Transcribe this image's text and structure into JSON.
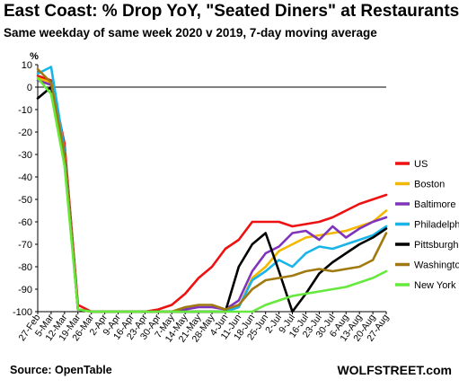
{
  "chart_data": {
    "type": "line",
    "title": "East Coast: % Drop YoY, \"Seated Diners\" at Restaurants",
    "subtitle": "Same weekday of same week 2020 v 2019, 7-day moving average",
    "ylabel": "%",
    "ylim": [
      -100,
      10
    ],
    "yticks": [
      10,
      0,
      -10,
      -20,
      -30,
      -40,
      -50,
      -60,
      -70,
      -80,
      -90,
      -100
    ],
    "xlim": [
      "27-Feb",
      "27-Aug"
    ],
    "categories": [
      "27-Feb",
      "5-Mar",
      "12-Mar",
      "19-Mar",
      "26-Mar",
      "2-Apr",
      "9-Apr",
      "16-Apr",
      "23-Apr",
      "30-Apr",
      "7-May",
      "14-May",
      "21-May",
      "28-May",
      "4-Jun",
      "11-Jun",
      "18-Jun",
      "25-Jun",
      "2-Jul",
      "9-Jul",
      "16-Jul",
      "23-Jul",
      "30-Jul",
      "6-Aug",
      "13-Aug",
      "20-Aug",
      "27-Aug"
    ],
    "grid": false,
    "legend_position": "right",
    "series": [
      {
        "name": "US",
        "color": "#ee1111",
        "values": [
          5,
          3,
          -25,
          -97,
          -100,
          -100,
          -100,
          -100,
          -100,
          -99,
          -97,
          -92,
          -85,
          -80,
          -72,
          -68,
          -60,
          -60,
          -60,
          -62,
          -61,
          -60,
          -58,
          -55,
          -52,
          -50,
          -48
        ]
      },
      {
        "name": "Boston",
        "color": "#f4b800",
        "values": [
          4,
          2,
          -28,
          -99,
          -100,
          -100,
          -100,
          -100,
          -100,
          -100,
          -100,
          -100,
          -100,
          -100,
          -100,
          -98,
          -85,
          -80,
          -73,
          -70,
          -67,
          -66,
          -65,
          -64,
          -62,
          -60,
          -55
        ]
      },
      {
        "name": "Baltimore",
        "color": "#8033bb",
        "values": [
          3,
          1,
          -30,
          -99,
          -100,
          -100,
          -100,
          -100,
          -100,
          -100,
          -100,
          -99,
          -98,
          -98,
          -99,
          -95,
          -82,
          -74,
          -71,
          -65,
          -64,
          -68,
          -62,
          -67,
          -63,
          -60,
          -58
        ]
      },
      {
        "name": "Philadelphia",
        "color": "#19b4e8",
        "values": [
          6,
          9,
          -28,
          -99,
          -100,
          -100,
          -100,
          -100,
          -100,
          -100,
          -100,
          -100,
          -100,
          -100,
          -100,
          -98,
          -86,
          -82,
          -77,
          -80,
          -74,
          -71,
          -72,
          -70,
          -68,
          -66,
          -62
        ]
      },
      {
        "name": "Pittsburgh",
        "color": "#000000",
        "values": [
          -5,
          0,
          -30,
          -99,
          -100,
          -100,
          -100,
          -100,
          -100,
          -100,
          -100,
          -100,
          -100,
          -100,
          -100,
          -80,
          -70,
          -65,
          -82,
          -100,
          -92,
          -83,
          -78,
          -74,
          -70,
          -67,
          -63
        ]
      },
      {
        "name": "Washington",
        "color": "#a07a10",
        "values": [
          8,
          2,
          -30,
          -99,
          -100,
          -100,
          -100,
          -100,
          -100,
          -100,
          -100,
          -98,
          -97,
          -97,
          -99,
          -97,
          -90,
          -86,
          -85,
          -84,
          -82,
          -81,
          -82,
          -81,
          -80,
          -77,
          -65
        ]
      },
      {
        "name": "New York",
        "color": "#66e83c",
        "values": [
          4,
          -3,
          -35,
          -99,
          -100,
          -100,
          -100,
          -100,
          -100,
          -100,
          -100,
          -100,
          -100,
          -100,
          -100,
          -100,
          -100,
          -97,
          -95,
          -93,
          -92,
          -91,
          -90,
          -89,
          -87,
          -85,
          -82
        ]
      }
    ]
  },
  "footer": {
    "source": "Source: OpenTable",
    "brand": "WOLFSTREET.com"
  }
}
